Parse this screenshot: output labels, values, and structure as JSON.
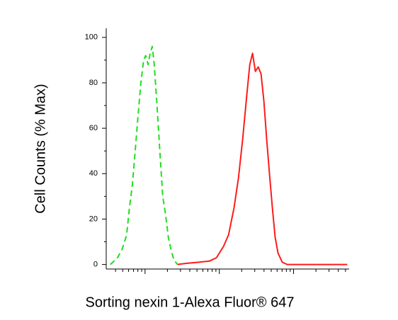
{
  "chart_data": {
    "type": "line",
    "y_label": "Cell Counts (% Max)",
    "x_label": "Sorting nexin 1-Alexa Fluor® 647",
    "x_scale": "log",
    "xlim": [
      3,
      5600
    ],
    "xticks": [
      10,
      100,
      1000
    ],
    "xminorticks": [
      4,
      5,
      6,
      7,
      8,
      9,
      20,
      30,
      40,
      50,
      60,
      70,
      80,
      90,
      200,
      300,
      400,
      500,
      600,
      700,
      800,
      900,
      2000,
      3000,
      4000,
      5000
    ],
    "ylim": [
      -2,
      104
    ],
    "yticks": [
      0,
      20,
      40,
      60,
      80,
      100
    ],
    "yminorticks": [
      10,
      30,
      50,
      70,
      90
    ],
    "series": [
      {
        "color": "#22dd22",
        "dashed": true,
        "x": [
          3.41,
          4.26,
          4.95,
          5.65,
          6.17,
          6.74,
          7.36,
          8.03,
          8.77,
          9.57,
          10.2,
          11.0,
          11.7,
          12.5,
          13.3,
          14.5,
          15.8,
          17.3,
          18.9,
          20.6,
          22.5,
          24.5,
          27.4
        ],
        "values": [
          0,
          3,
          7,
          13,
          25,
          35,
          50,
          65,
          80,
          90,
          92,
          88,
          93,
          96,
          88,
          70,
          50,
          30,
          22,
          12,
          6,
          2,
          0
        ]
      },
      {
        "color": "#ff1a1a",
        "dashed": false,
        "x": [
          27.4,
          35.7,
          53,
          73.6,
          91.6,
          114,
          133,
          158,
          181,
          206,
          235,
          257,
          280,
          306,
          334,
          365,
          398,
          435,
          474,
          518,
          565,
          617,
          705,
          821,
          1140,
          5300
        ],
        "values": [
          0,
          0.5,
          1,
          1.5,
          3,
          8,
          13,
          25,
          38,
          55,
          75,
          88,
          93,
          85,
          87,
          84,
          72,
          55,
          40,
          25,
          12,
          5,
          1,
          0,
          0,
          0
        ]
      }
    ]
  }
}
